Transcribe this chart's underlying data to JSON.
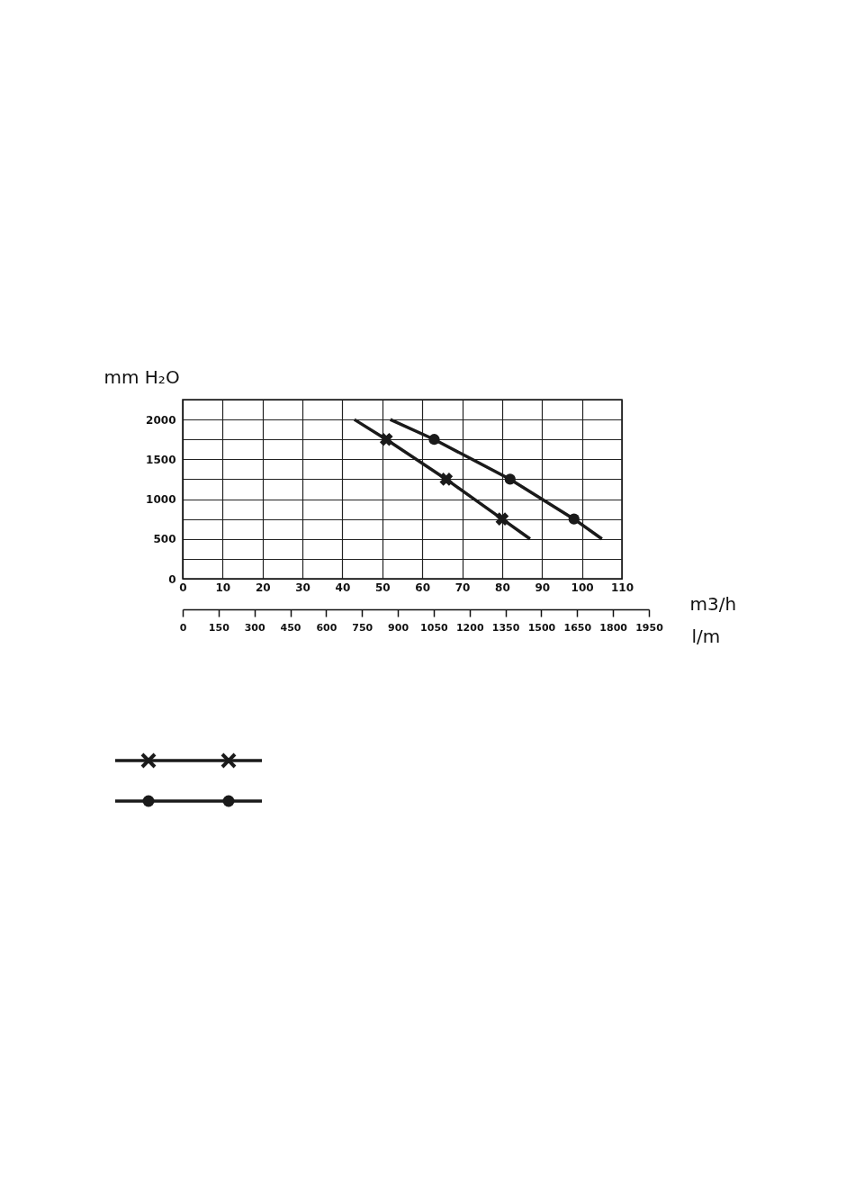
{
  "chart_data": {
    "type": "line",
    "ylabel": "mm H₂O",
    "xlabel": "m3/h",
    "x2label": "l/m",
    "xlim": [
      0,
      110
    ],
    "xticks": [
      0,
      10,
      20,
      30,
      40,
      50,
      60,
      70,
      80,
      90,
      100,
      110
    ],
    "ylim": [
      0,
      2250
    ],
    "yticks": [
      0,
      {
        "value": 250,
        "label": null
      },
      500,
      {
        "value": 750,
        "label": null
      },
      1000,
      {
        "value": 1250,
        "label": null
      },
      1500,
      {
        "value": 1750,
        "label": null
      },
      2000,
      {
        "value": 2250,
        "label": null
      }
    ],
    "x2lim": [
      0,
      1950
    ],
    "x2ticks": [
      0,
      150,
      300,
      450,
      600,
      750,
      900,
      1050,
      1200,
      1350,
      1500,
      1650,
      1800,
      1950
    ],
    "grid": true,
    "series": [
      {
        "color": "#1a1a1a",
        "marker": "none",
        "x": [
          43,
          51,
          66,
          80,
          87
        ],
        "values": [
          2000,
          1750,
          1250,
          750,
          500
        ]
      },
      {
        "type": "scatter",
        "color": "#1a1a1a",
        "marker": "cross",
        "x": [
          51,
          66,
          80
        ],
        "values": [
          1750,
          1250,
          750
        ]
      },
      {
        "color": "#1a1a1a",
        "marker": "none",
        "x": [
          52,
          63,
          82,
          98,
          105
        ],
        "values": [
          2000,
          1750,
          1250,
          750,
          500
        ]
      },
      {
        "type": "scatter",
        "color": "#1a1a1a",
        "marker": "circle",
        "x": [
          63,
          82,
          98
        ],
        "values": [
          1750,
          1250,
          750
        ]
      }
    ]
  }
}
